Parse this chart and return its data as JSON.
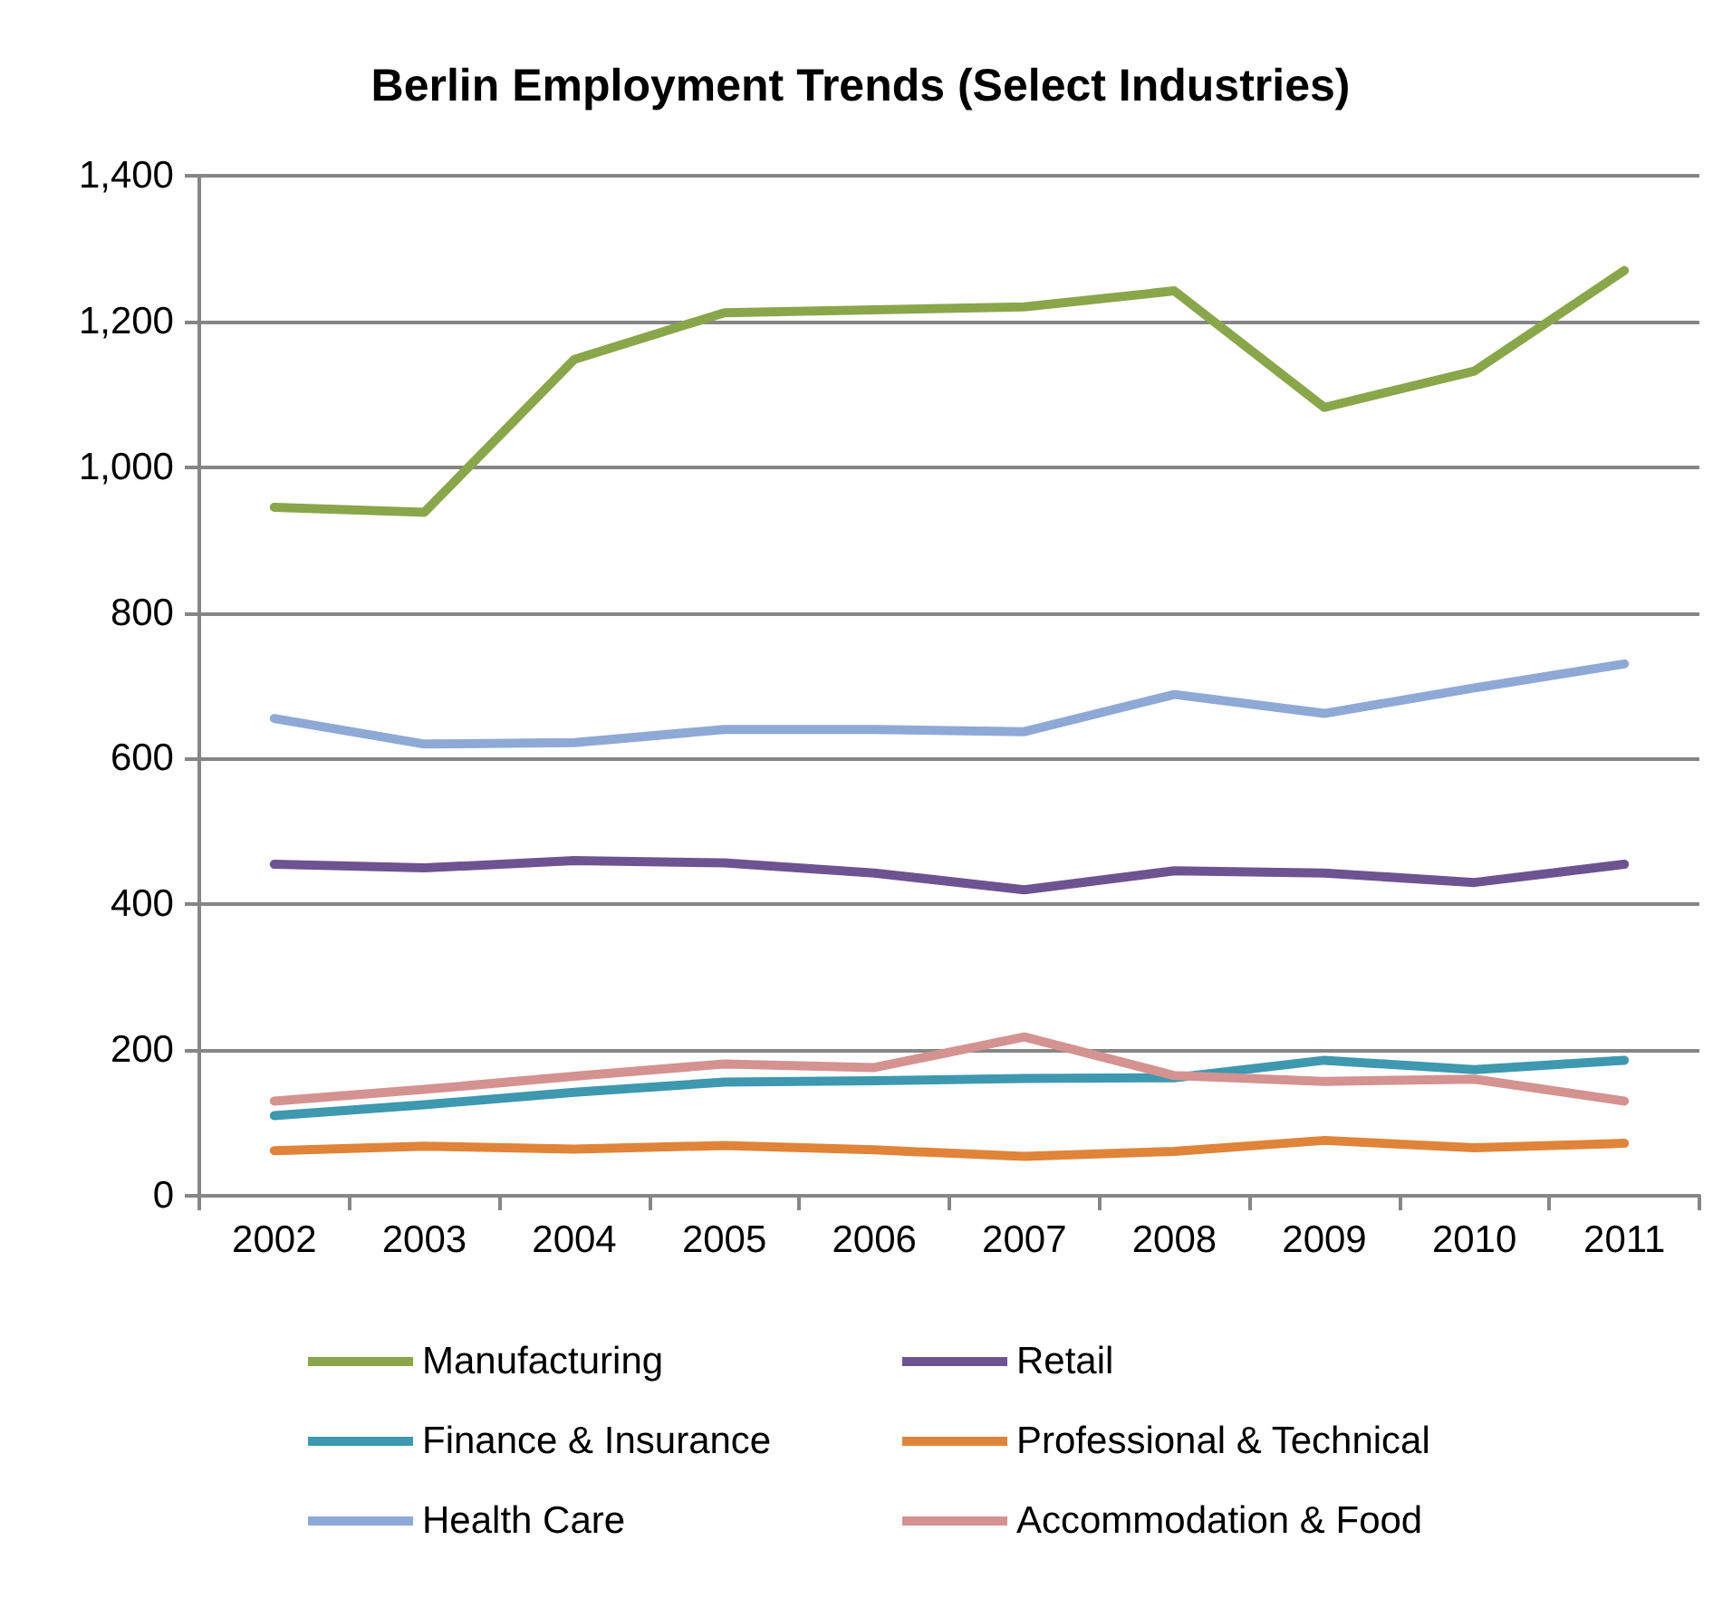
{
  "chart_data": {
    "type": "line",
    "title": "Berlin Employment Trends (Select Industries)",
    "categories": [
      "2002",
      "2003",
      "2004",
      "2005",
      "2006",
      "2007",
      "2008",
      "2009",
      "2010",
      "2011"
    ],
    "series": [
      {
        "name": "Manufacturing",
        "color": "#8aa64a",
        "values": [
          945,
          938,
          1148,
          1212,
          1216,
          1220,
          1242,
          1082,
          1132,
          1270
        ]
      },
      {
        "name": "Retail",
        "color": "#6d5392",
        "values": [
          455,
          450,
          460,
          457,
          443,
          420,
          446,
          443,
          430,
          455
        ]
      },
      {
        "name": "Finance & Insurance",
        "color": "#3e98b0",
        "values": [
          110,
          125,
          142,
          156,
          158,
          161,
          162,
          186,
          173,
          186
        ]
      },
      {
        "name": "Professional & Technical",
        "color": "#e0843a",
        "values": [
          62,
          68,
          64,
          69,
          63,
          54,
          61,
          76,
          66,
          72
        ]
      },
      {
        "name": "Health Care",
        "color": "#8ea9d6",
        "values": [
          655,
          620,
          622,
          640,
          640,
          637,
          688,
          662,
          697,
          730
        ]
      },
      {
        "name": "Accommodation & Food",
        "color": "#d49291",
        "values": [
          130,
          146,
          164,
          181,
          176,
          218,
          165,
          157,
          160,
          130
        ]
      }
    ],
    "ylim": [
      0,
      1400
    ],
    "yticks": [
      0,
      200,
      400,
      600,
      800,
      {
        "value": 1000,
        "label": "1,000"
      },
      {
        "value": 1200,
        "label": "1,200"
      },
      {
        "value": 1400,
        "label": "1,400"
      }
    ],
    "grid": "y",
    "legend": "bottom",
    "marker": "none",
    "line_style": "solid"
  }
}
